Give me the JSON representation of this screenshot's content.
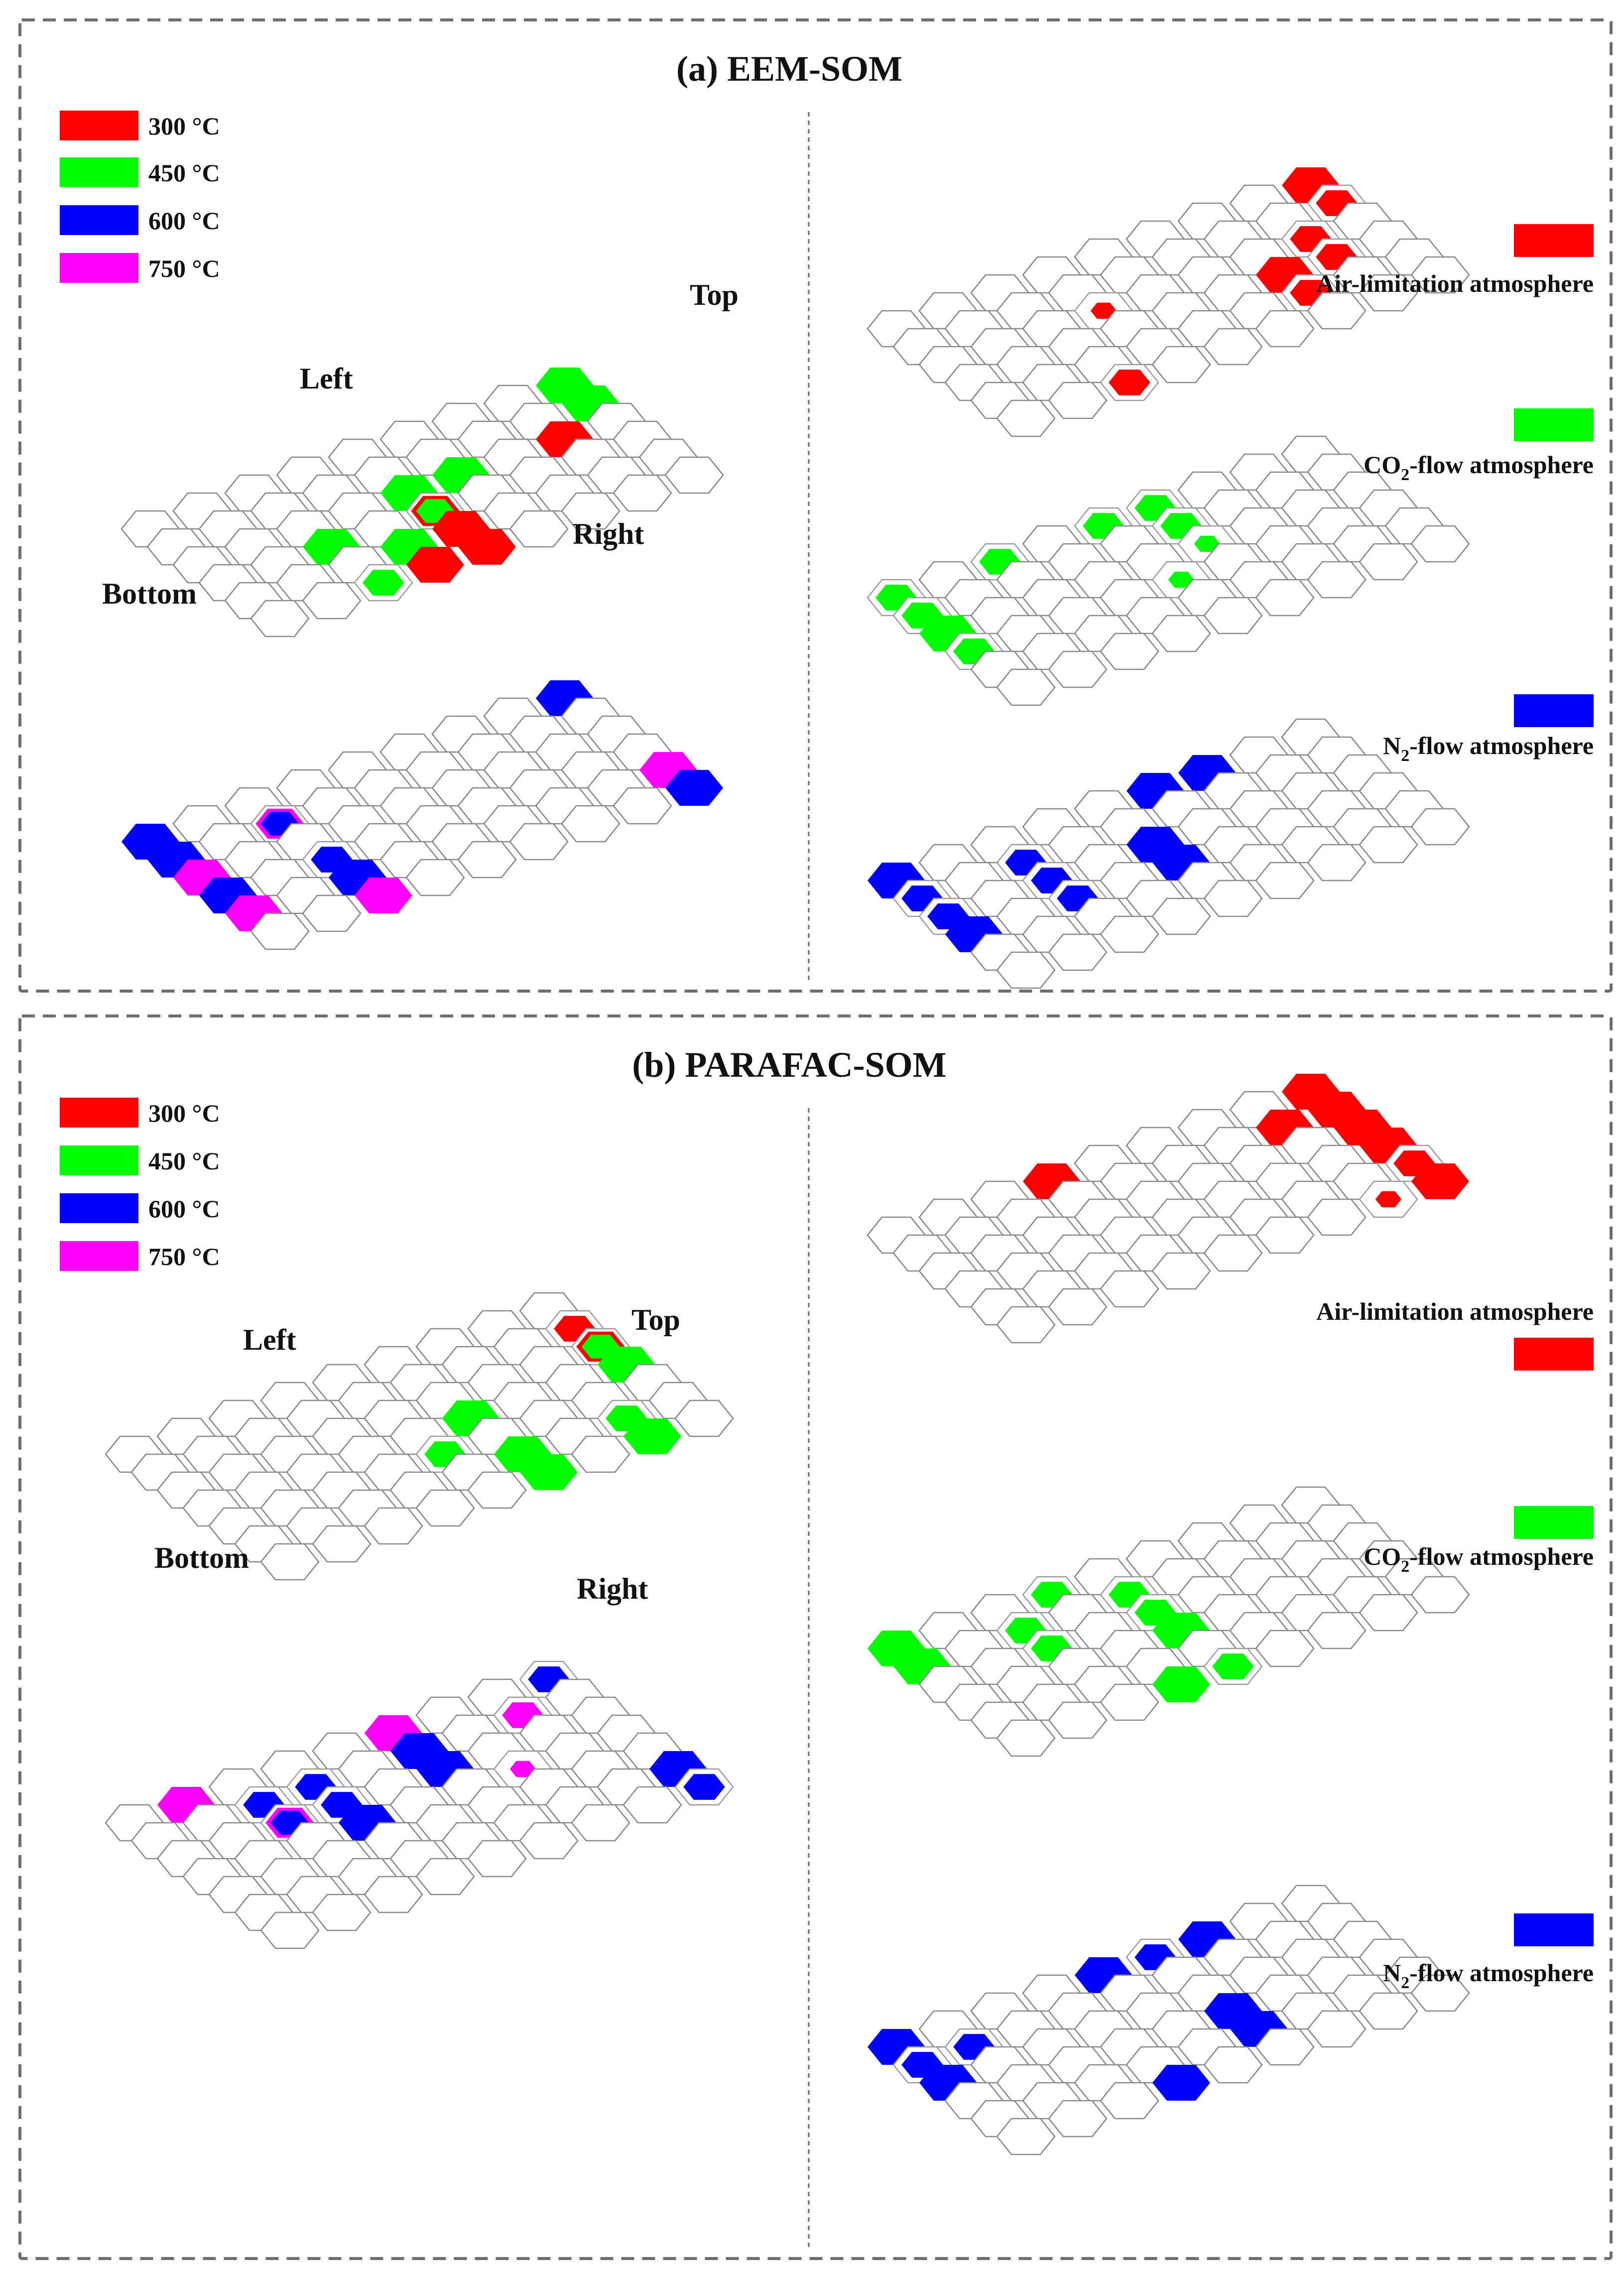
{
  "colors": {
    "c300": "#ff0000",
    "c450": "#00ff00",
    "c600": "#0000ff",
    "c750": "#ff00ff",
    "frame": "#6e6e6e",
    "hex_outline": "#8a8a8a"
  },
  "panels": [
    {
      "id": "a",
      "title": "(a) EEM-SOM",
      "legend": [
        {
          "label": "300 °C",
          "color_key": "c300"
        },
        {
          "label": "450 °C",
          "color_key": "c450"
        },
        {
          "label": "600 °C",
          "color_key": "c600"
        },
        {
          "label": "750 °C",
          "color_key": "c750"
        }
      ],
      "orientation": {
        "top": "Top",
        "left": "Left",
        "right": "Right",
        "bottom": "Bottom"
      },
      "atmospheres": [
        {
          "main": "Air-limitation atmosphere",
          "prefix": "",
          "sub": "",
          "color_key": "c300"
        },
        {
          "main": "-flow atmosphere",
          "prefix": "CO",
          "sub": "2",
          "color_key": "c450"
        },
        {
          "main": "-flow atmosphere",
          "prefix": "N",
          "sub": "2",
          "color_key": "c600"
        }
      ]
    },
    {
      "id": "b",
      "title": "(b) PARAFAC-SOM",
      "legend": [
        {
          "label": "300 °C",
          "color_key": "c300"
        },
        {
          "label": "450 °C",
          "color_key": "c450"
        },
        {
          "label": "600 °C",
          "color_key": "c600"
        },
        {
          "label": "750 °C",
          "color_key": "c750"
        }
      ],
      "orientation": {
        "top": "Top",
        "left": "Left",
        "right": "Right",
        "bottom": "Bottom"
      },
      "atmospheres": [
        {
          "main": "Air-limitation atmosphere",
          "prefix": "",
          "sub": "",
          "color_key": "c300"
        },
        {
          "main": "-flow atmosphere",
          "prefix": "CO",
          "sub": "2",
          "color_key": "c450"
        },
        {
          "main": "-flow atmosphere",
          "prefix": "N",
          "sub": "2",
          "color_key": "c600"
        }
      ]
    }
  ]
}
